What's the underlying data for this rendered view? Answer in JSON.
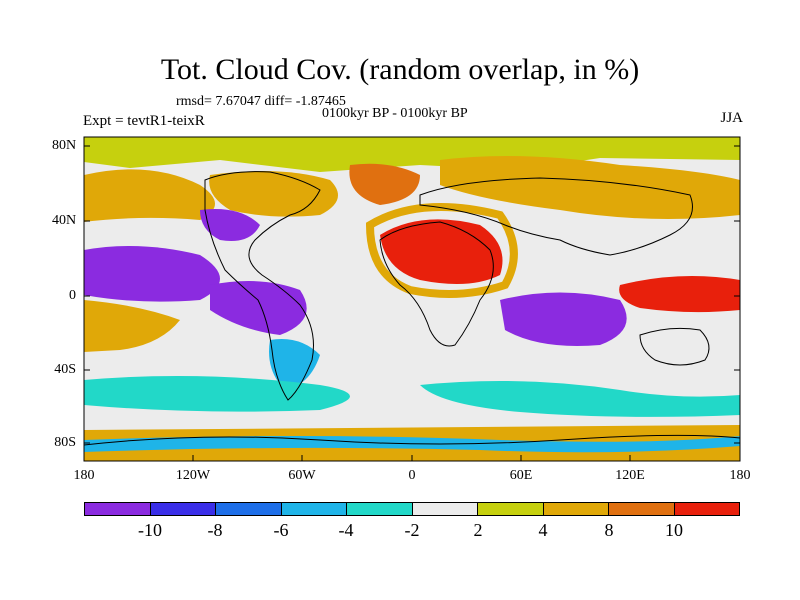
{
  "title": "Tot. Cloud Cov. (random overlap, in %)",
  "stats": "rmsd= 7.67047 diff= -1.87465",
  "subtitle": "0100kyr BP - 0100kyr BP",
  "experiment": "Expt = tevtR1-teixR",
  "season": "JJA",
  "lat_labels": [
    "80N",
    "40N",
    "0",
    "40S",
    "80S"
  ],
  "lon_labels": [
    "180",
    "120W",
    "60W",
    "0",
    "60E",
    "120E",
    "180"
  ],
  "colorbar": {
    "labels": [
      "-10",
      "-8",
      "-6",
      "-4",
      "-2",
      "2",
      "4",
      "8",
      "10"
    ],
    "colors": [
      "#8b2be0",
      "#3a2ee8",
      "#1d6ee8",
      "#1fb4e8",
      "#22d8c8",
      "#ececec",
      "#c6d00e",
      "#e0a808",
      "#e07010",
      "#e8200c"
    ]
  },
  "map_data": {
    "field": "Total cloud cover difference",
    "units": "%",
    "lat_range": [
      -90,
      90
    ],
    "lon_range": [
      -180,
      180
    ],
    "regions": [
      {
        "name": "Sahara / Arabia",
        "value": 10
      },
      {
        "name": "Indonesian maritime continent",
        "value": 10
      },
      {
        "name": "Tropical East Pacific",
        "value": -10
      },
      {
        "name": "Southern Indian Ocean",
        "value": -10
      },
      {
        "name": "North Atlantic",
        "value": 6
      },
      {
        "name": "Southern Ocean",
        "value": -4
      }
    ]
  }
}
